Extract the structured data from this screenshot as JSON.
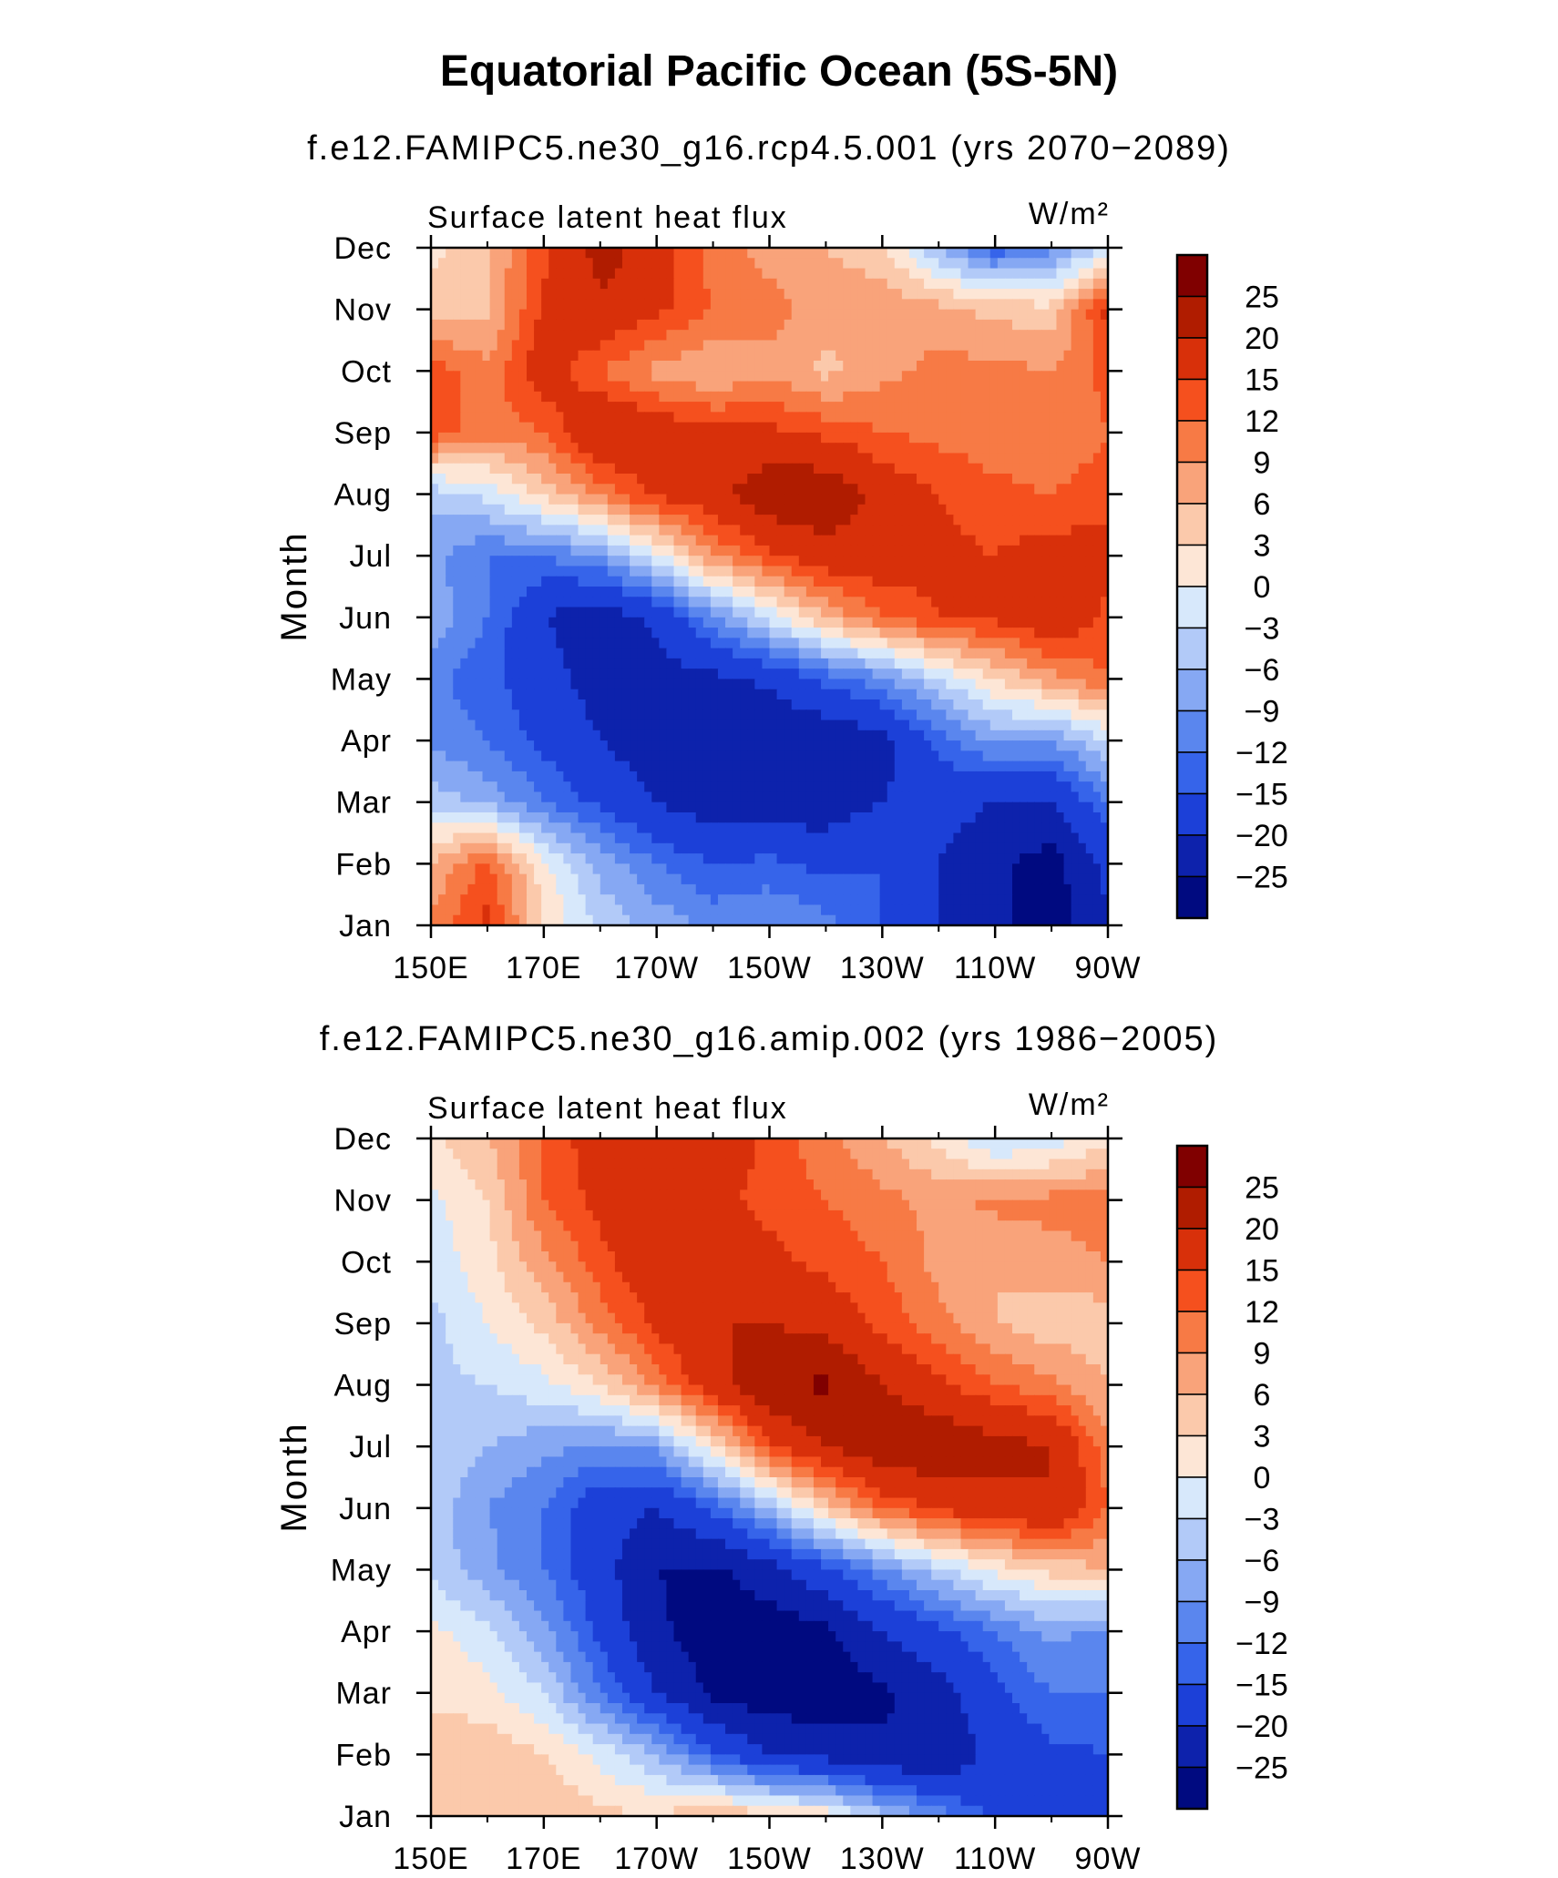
{
  "figure_title": "Equatorial Pacific Ocean (5S-5N)",
  "colorbar": {
    "levels": [
      "25",
      "20",
      "15",
      "12",
      "9",
      "6",
      "3",
      "0",
      "−3",
      "−6",
      "−9",
      "−12",
      "−15",
      "−20",
      "−25"
    ],
    "colors": [
      "#800000",
      "#b01c00",
      "#d8300a",
      "#f5501e",
      "#f77a45",
      "#f9a37a",
      "#fbc9ab",
      "#fde6d6",
      "#d7e8fb",
      "#b2caf8",
      "#86a8f3",
      "#5a86ee",
      "#3664ea",
      "#1c40d8",
      "#0d22ac",
      "#000a80"
    ]
  },
  "chart_data": [
    {
      "type": "heatmap",
      "title": "f.e12.FAMIPC5.ne30_g16.rcp4.5.001 (yrs 2070−2089)",
      "left_label": "Surface latent heat flux",
      "units_label": "W/m²",
      "ylabel": "Month",
      "xlabel": "",
      "x_ticks": [
        "150E",
        "170E",
        "170W",
        "150W",
        "130W",
        "110W",
        "90W"
      ],
      "y_ticks": [
        "Jan",
        "Feb",
        "Mar",
        "Apr",
        "May",
        "Jun",
        "Jul",
        "Aug",
        "Sep",
        "Oct",
        "Nov",
        "Dec"
      ],
      "xlim": [
        150,
        270
      ],
      "ylim": [
        1,
        12
      ],
      "z_range": [
        -30,
        30
      ],
      "x": [
        150,
        160,
        170,
        180,
        190,
        200,
        210,
        220,
        230,
        240,
        250,
        260,
        270
      ],
      "y": [
        1,
        2,
        3,
        4,
        5,
        6,
        7,
        8,
        9,
        10,
        11,
        12
      ],
      "z": [
        [
          10,
          16,
          3,
          -4,
          -7,
          -10,
          -9,
          -11,
          -15,
          -20,
          -24,
          -28,
          -20
        ],
        [
          6,
          13,
          1,
          -7,
          -12,
          -15,
          -14,
          -16,
          -15,
          -20,
          -24,
          -27,
          -19
        ],
        [
          -4,
          -7,
          -12,
          -16,
          -20,
          -23,
          -24,
          -23,
          -20,
          -18,
          -20,
          -20,
          -12
        ],
        [
          -10,
          -12,
          -16,
          -20,
          -23,
          -24,
          -25,
          -24,
          -22,
          -14,
          -8,
          -9,
          -3
        ],
        [
          -11,
          -14,
          -18,
          -22,
          -22,
          -21,
          -19,
          -14,
          -10,
          -3,
          3,
          8,
          12
        ],
        [
          -7,
          -12,
          -20,
          -23,
          -19,
          -10,
          -2,
          6,
          12,
          15,
          16,
          19,
          14
        ],
        [
          -8,
          -12,
          -12,
          -9,
          -1,
          9,
          14,
          18,
          18,
          16,
          15,
          17,
          16
        ],
        [
          -5,
          -2,
          4,
          10,
          16,
          18,
          24,
          24,
          18,
          15,
          13,
          12,
          14
        ],
        [
          14,
          10,
          12,
          20,
          18,
          16,
          16,
          14,
          12,
          11,
          10,
          9,
          12
        ],
        [
          14,
          10,
          18,
          12,
          8,
          6,
          8,
          5,
          8,
          10,
          10,
          9,
          13
        ],
        [
          4,
          5,
          16,
          19,
          16,
          12,
          10,
          8,
          8,
          7,
          5,
          4,
          16
        ],
        [
          2,
          6,
          14,
          22,
          18,
          10,
          8,
          6,
          4,
          -6,
          -14,
          -10,
          -2
        ]
      ]
    },
    {
      "type": "heatmap",
      "title": "f.e12.FAMIPC5.ne30_g16.amip.002 (yrs 1986−2005)",
      "left_label": "Surface latent heat flux",
      "units_label": "W/m²",
      "ylabel": "Month",
      "xlabel": "",
      "x_ticks": [
        "150E",
        "170E",
        "170W",
        "150W",
        "130W",
        "110W",
        "90W"
      ],
      "y_ticks": [
        "Jan",
        "Feb",
        "Mar",
        "Apr",
        "May",
        "Jun",
        "Jul",
        "Aug",
        "Sep",
        "Oct",
        "Nov",
        "Dec"
      ],
      "xlim": [
        150,
        270
      ],
      "ylim": [
        1,
        12
      ],
      "z_range": [
        -30,
        30
      ],
      "x": [
        150,
        160,
        170,
        180,
        190,
        200,
        210,
        220,
        230,
        240,
        250,
        260,
        270
      ],
      "y": [
        1,
        2,
        3,
        4,
        5,
        6,
        7,
        8,
        9,
        10,
        11,
        12
      ],
      "z": [
        [
          4,
          6,
          6,
          4,
          3,
          6,
          4,
          2,
          -5,
          -10,
          -16,
          -18,
          -18
        ],
        [
          6,
          5,
          3,
          -1,
          -6,
          -14,
          -20,
          -22,
          -24,
          -25,
          -18,
          -16,
          -15
        ],
        [
          2,
          1,
          -3,
          -12,
          -20,
          -26,
          -28,
          -28,
          -26,
          -22,
          -16,
          -12,
          -12
        ],
        [
          1,
          -2,
          -8,
          -16,
          -24,
          -28,
          -28,
          -26,
          -20,
          -16,
          -12,
          -8,
          -10
        ],
        [
          -4,
          -8,
          -12,
          -18,
          -25,
          -26,
          -22,
          -16,
          -10,
          -4,
          1,
          4,
          6
        ],
        [
          -4,
          -9,
          -12,
          -18,
          -20,
          -14,
          -6,
          4,
          12,
          16,
          18,
          20,
          12
        ],
        [
          -4,
          -6,
          -8,
          -10,
          -8,
          2,
          14,
          20,
          24,
          24,
          22,
          20,
          10
        ],
        [
          -4,
          -3,
          -1,
          3,
          10,
          18,
          24,
          26,
          20,
          16,
          12,
          10,
          6
        ],
        [
          -4,
          0,
          4,
          10,
          16,
          20,
          20,
          18,
          14,
          10,
          6,
          4,
          4
        ],
        [
          -2,
          2,
          8,
          14,
          18,
          18,
          16,
          14,
          12,
          8,
          6,
          8,
          9
        ],
        [
          -1,
          3,
          12,
          16,
          18,
          16,
          14,
          12,
          10,
          8,
          10,
          10,
          10
        ],
        [
          2,
          6,
          12,
          18,
          20,
          18,
          14,
          10,
          6,
          2,
          -4,
          -2,
          2
        ]
      ]
    }
  ]
}
